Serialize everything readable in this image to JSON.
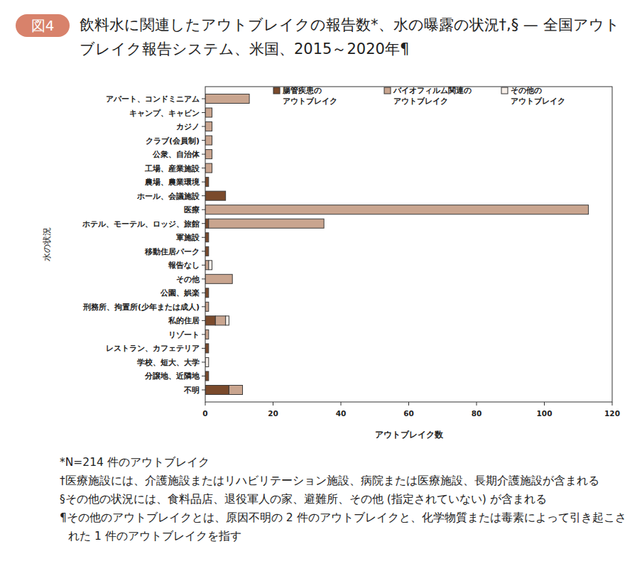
{
  "figure_label": "図4",
  "chart_data": {
    "type": "bar",
    "orientation": "horizontal",
    "stacked": true,
    "legend": "top",
    "title": "飲料水に関連したアウトブレイクの報告数*、水の曝露の状況†,§ — 全国アウトブレイク報告システム、米国、2015～2020年¶",
    "x_label": "アウトブレイク数",
    "y_label": "水の状況",
    "categories": [
      "アパート、コンドミニアム",
      "キャンプ、キャビン",
      "カジノ",
      "クラブ(会員制)",
      "公衆、自治体",
      "工場、産業施設",
      "農場、農業環境",
      "ホール、会議施設",
      "医療",
      "ホテル、モーテル、ロッジ、旅館",
      "軍施設",
      "移動住居パーク",
      "報告なし",
      "その他",
      "公園、娯楽",
      "刑務所、拘置所(少年または成人)",
      "私的住居",
      "リゾート",
      "レストラン、カフェテリア",
      "学校、短大、大学",
      "分譲地、近隣地",
      "不明"
    ],
    "series": [
      {
        "name": "腸管疾患のアウトブレイク",
        "color": "#7a4a2c",
        "values": [
          0,
          0,
          0,
          0,
          0,
          0,
          1,
          6,
          0,
          1,
          1,
          1,
          0,
          0,
          1,
          0,
          3,
          0,
          1,
          0,
          1,
          7
        ]
      },
      {
        "name": "バイオフィルム関連のアウトブレイク",
        "color": "#c9a58f",
        "values": [
          13,
          2,
          2,
          2,
          2,
          2,
          0,
          0,
          113,
          34,
          0,
          0,
          1,
          8,
          0,
          1,
          3,
          1,
          0,
          0,
          0,
          4
        ]
      },
      {
        "name": "その他のアウトブレイク",
        "color": "#f6eee8",
        "values": [
          0,
          0,
          0,
          0,
          0,
          0,
          0,
          0,
          0,
          0,
          0,
          0,
          1,
          0,
          0,
          0,
          1,
          0,
          0,
          1,
          0,
          0
        ]
      }
    ],
    "xlim": [
      0,
      120
    ],
    "xticks": [
      0,
      20,
      40,
      60,
      80,
      100,
      120
    ]
  },
  "footnotes": [
    "*N=214 件のアウトブレイク",
    "†医療施設には、介護施設またはリハビリテーション施設、病院または医療施設、長期介護施設が含まれる",
    "§その他の状況には、食料品店、退役軍人の家、避難所、その他 (指定されていない) が含まれる",
    "¶その他のアウトブレイクとは、原因不明の 2 件のアウトブレイクと、化学物質または毒素によって引き起こされた 1 件のアウトブレイクを指す"
  ]
}
